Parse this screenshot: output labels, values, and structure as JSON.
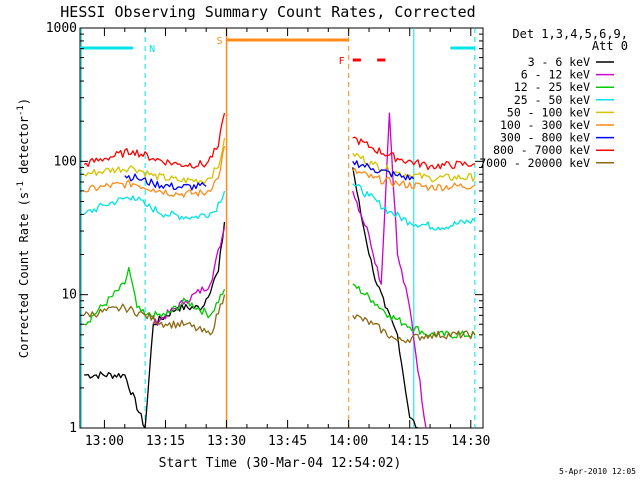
{
  "chart_data": {
    "type": "line",
    "title": "HESSI Observing Summary Count Rates, Corrected",
    "xlabel": "Start Time (30-Mar-04 12:54:02)",
    "ylabel_main": "Corrected Count Rate (s",
    "ylabel_sup1": "-1",
    "ylabel_mid": " detector",
    "ylabel_sup2": "-1",
    "ylabel_end": ")",
    "yscale": "log",
    "xlim": [
      "12:54:02",
      "14:33:00"
    ],
    "ylim": [
      1,
      1000
    ],
    "x_ticks": [
      "13:00",
      "13:15",
      "13:30",
      "13:45",
      "14:00",
      "14:15",
      "14:30"
    ],
    "y_ticks": [
      "1",
      "10",
      "100",
      "1000"
    ],
    "legend_title": "Det 1,3,4,5,6,9,",
    "legend_subtitle": "Att 0",
    "legend_position": "right",
    "series": [
      {
        "name": "3 - 6 keV",
        "color": "#000000",
        "points": [
          [
            "12:55",
            2.5
          ],
          [
            "13:05",
            2.5
          ],
          [
            "13:10",
            1.0
          ],
          [
            "13:12",
            6
          ],
          [
            "13:18",
            8
          ],
          [
            "13:24",
            8
          ],
          [
            "13:28",
            15
          ],
          [
            "13:29.5",
            35
          ],
          [
            "14:01",
            90
          ],
          [
            "14:03",
            40
          ],
          [
            "14:06",
            15
          ],
          [
            "14:09",
            8
          ],
          [
            "14:12",
            5
          ],
          [
            "14:15",
            1.2
          ],
          [
            "14:17",
            1.0
          ]
        ]
      },
      {
        "name": "6 - 12 keV",
        "color": "#cc00cc",
        "points": [
          [
            "13:12",
            6
          ],
          [
            "13:20",
            9
          ],
          [
            "13:26",
            12
          ],
          [
            "13:29.5",
            32
          ],
          [
            "14:01",
            60
          ],
          [
            "14:05",
            28
          ],
          [
            "14:08",
            12
          ],
          [
            "14:10",
            230
          ],
          [
            "14:12",
            20
          ],
          [
            "14:15",
            8
          ],
          [
            "14:19",
            1.0
          ]
        ]
      },
      {
        "name": "12 - 25 keV",
        "color": "#00cc00",
        "points": [
          [
            "12:55",
            6
          ],
          [
            "13:05",
            12
          ],
          [
            "13:06",
            16
          ],
          [
            "13:08",
            8
          ],
          [
            "13:10",
            7
          ],
          [
            "13:15",
            7
          ],
          [
            "13:20",
            9
          ],
          [
            "13:26",
            7
          ],
          [
            "13:29.5",
            11
          ],
          [
            "14:01",
            12
          ],
          [
            "14:06",
            9
          ],
          [
            "14:10",
            7
          ],
          [
            "14:14",
            6
          ],
          [
            "14:20",
            5
          ],
          [
            "14:31",
            5
          ]
        ]
      },
      {
        "name": "25 - 50 keV",
        "color": "#00e5e5",
        "points": [
          [
            "12:55",
            40
          ],
          [
            "13:00",
            47
          ],
          [
            "13:07",
            55
          ],
          [
            "13:10",
            47
          ],
          [
            "13:15",
            40
          ],
          [
            "13:22",
            38
          ],
          [
            "13:27",
            42
          ],
          [
            "13:29.5",
            60
          ],
          [
            "14:01",
            68
          ],
          [
            "14:05",
            55
          ],
          [
            "14:10",
            42
          ],
          [
            "14:15",
            35
          ],
          [
            "14:22",
            32
          ],
          [
            "14:31",
            36
          ]
        ]
      },
      {
        "name": "50 - 100 keV",
        "color": "#d4c400",
        "points": [
          [
            "12:55",
            80
          ],
          [
            "13:00",
            85
          ],
          [
            "13:07",
            90
          ],
          [
            "13:12",
            78
          ],
          [
            "13:18",
            72
          ],
          [
            "13:25",
            72
          ],
          [
            "13:28",
            90
          ],
          [
            "13:29.5",
            150
          ],
          [
            "14:01",
            115
          ],
          [
            "14:06",
            95
          ],
          [
            "14:12",
            82
          ],
          [
            "14:20",
            75
          ],
          [
            "14:31",
            76
          ]
        ]
      },
      {
        "name": "100 - 300 keV",
        "color": "#ff8c1a",
        "points": [
          [
            "12:55",
            60
          ],
          [
            "13:00",
            65
          ],
          [
            "13:07",
            68
          ],
          [
            "13:12",
            62
          ],
          [
            "13:18",
            57
          ],
          [
            "13:25",
            58
          ],
          [
            "13:28",
            75
          ],
          [
            "13:29.5",
            130
          ],
          [
            "14:01",
            85
          ],
          [
            "14:06",
            75
          ],
          [
            "14:12",
            68
          ],
          [
            "14:20",
            64
          ],
          [
            "14:31",
            66
          ]
        ]
      },
      {
        "name": "300 - 800 keV",
        "color": "#0000ff",
        "points": [
          [
            "13:05",
            78
          ],
          [
            "13:08",
            75
          ],
          [
            "13:12",
            68
          ],
          [
            "13:18",
            64
          ],
          [
            "13:25",
            65
          ],
          [
            "14:01",
            100
          ],
          [
            "14:06",
            88
          ],
          [
            "14:12",
            78
          ],
          [
            "14:16",
            74
          ]
        ]
      },
      {
        "name": "800 - 7000 keV",
        "color": "#ff0000",
        "points": [
          [
            "12:55",
            95
          ],
          [
            "13:00",
            105
          ],
          [
            "13:07",
            120
          ],
          [
            "13:12",
            105
          ],
          [
            "13:18",
            95
          ],
          [
            "13:25",
            95
          ],
          [
            "13:28",
            130
          ],
          [
            "13:29.5",
            230
          ],
          [
            "14:01",
            150
          ],
          [
            "14:06",
            125
          ],
          [
            "14:12",
            105
          ],
          [
            "14:20",
            92
          ],
          [
            "14:31",
            96
          ]
        ]
      },
      {
        "name": "7000 - 20000 keV",
        "color": "#8b6914",
        "points": [
          [
            "12:55",
            7
          ],
          [
            "13:05",
            8
          ],
          [
            "13:10",
            7
          ],
          [
            "13:15",
            6
          ],
          [
            "13:20",
            6
          ],
          [
            "13:26",
            5
          ],
          [
            "13:29.5",
            10
          ],
          [
            "14:01",
            7
          ],
          [
            "14:06",
            6
          ],
          [
            "14:12",
            4.5
          ],
          [
            "14:20",
            5
          ],
          [
            "14:31",
            5
          ]
        ]
      }
    ],
    "flag_labels": {
      "n": "N",
      "s": "S",
      "f": "F"
    },
    "flags": {
      "night_segments": [
        [
          "12:54",
          1.2,
          "13:07"
        ],
        [
          "14:25",
          1.2,
          "14:31"
        ]
      ],
      "saa_segment": [
        "13:30",
        "14:00"
      ],
      "flare_dashes": [
        [
          "14:01",
          "14:03"
        ],
        [
          "14:07",
          "14:09"
        ]
      ]
    },
    "footer_date": "5-Apr-2010 12:05"
  },
  "colors": {
    "axes": "#000000",
    "cyan": "#00e5e5",
    "orange": "#ff8c1a",
    "red": "#ff0000"
  }
}
